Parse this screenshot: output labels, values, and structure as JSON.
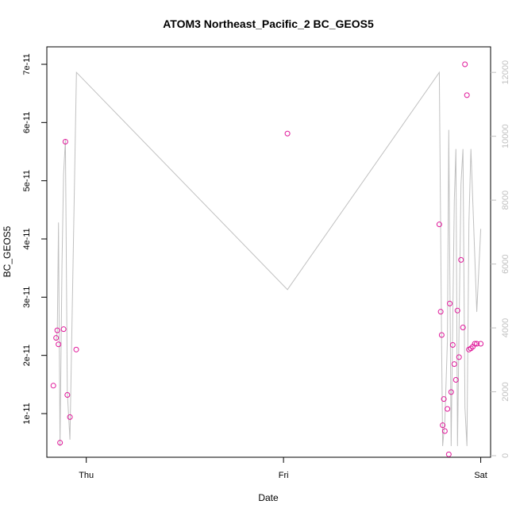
{
  "chart_data": {
    "type": "scatter",
    "title": "ATOM3 Northeast_Pacific_2 BC_GEOS5",
    "xlabel": "Date",
    "ylabel": "BC_GEOS5",
    "x_ticks": [
      "Thu",
      "Fri",
      "Sat"
    ],
    "x_tick_values": [
      0,
      1,
      2
    ],
    "xlim": [
      -0.2,
      2.05
    ],
    "ylim": [
      2.5e-12,
      7.3e-11
    ],
    "y_ticks": [
      1e-11,
      2e-11,
      3e-11,
      4e-11,
      5e-11,
      6e-11,
      7e-11
    ],
    "y_tick_labels": [
      "1e-11",
      "2e-11",
      "3e-11",
      "4e-11",
      "5e-11",
      "6e-11",
      "7e-11"
    ],
    "y2lim": [
      -50,
      12800
    ],
    "y2_ticks": [
      0,
      2000,
      4000,
      6000,
      8000,
      10000,
      12000
    ],
    "y2_tick_labels": [
      "0",
      "2000",
      "4000",
      "6000",
      "8000",
      "10000",
      "12000"
    ],
    "grid": false,
    "series": [
      {
        "kind": "points",
        "color": "#e0189a",
        "x": [
          -0.167,
          -0.153,
          -0.147,
          -0.141,
          -0.133,
          -0.115,
          -0.106,
          -0.096,
          -0.083,
          -0.051,
          1.02,
          1.79,
          1.797,
          1.802,
          1.807,
          1.813,
          1.818,
          1.831,
          1.838,
          1.843,
          1.85,
          1.858,
          1.866,
          1.874,
          1.882,
          1.89,
          1.9,
          1.91,
          1.92,
          1.93,
          1.94,
          1.95,
          1.96,
          1.97,
          1.98,
          2.0
        ],
        "y": [
          1.48e-11,
          2.3e-11,
          2.43e-11,
          2.19e-11,
          5e-12,
          2.45e-11,
          5.67e-11,
          1.32e-11,
          9.4e-12,
          2.1e-11,
          5.81e-11,
          4.25e-11,
          2.75e-11,
          2.35e-11,
          8e-12,
          1.25e-11,
          7e-12,
          1.08e-11,
          3e-12,
          2.89e-11,
          1.37e-11,
          2.18e-11,
          1.85e-11,
          1.58e-11,
          2.77e-11,
          1.97e-11,
          3.64e-11,
          2.48e-11,
          7e-11,
          6.47e-11,
          2.1e-11,
          2.12e-11,
          2.15e-11,
          2.2e-11,
          2.2e-11,
          2.2e-11
        ]
      },
      {
        "kind": "line",
        "axis": "right",
        "color": "#c0c0c0",
        "x": [
          -0.153,
          -0.147,
          -0.141,
          -0.133,
          -0.123,
          -0.115,
          -0.106,
          -0.096,
          -0.083,
          -0.05,
          1.02,
          1.79,
          1.797,
          1.802,
          1.807,
          1.818,
          1.831,
          1.838,
          1.85,
          1.866,
          1.874,
          1.882,
          1.9,
          1.91,
          1.92,
          1.93,
          1.94,
          1.95,
          1.98,
          2.0
        ],
        "y": [
          3600,
          3900,
          7300,
          300,
          6000,
          8800,
          9900,
          2000,
          500,
          12000,
          5200,
          12000,
          7000,
          3200,
          300,
          1100,
          3600,
          10200,
          300,
          8000,
          9600,
          300,
          8500,
          9600,
          1500,
          300,
          7300,
          9600,
          4500,
          7100
        ]
      }
    ]
  }
}
